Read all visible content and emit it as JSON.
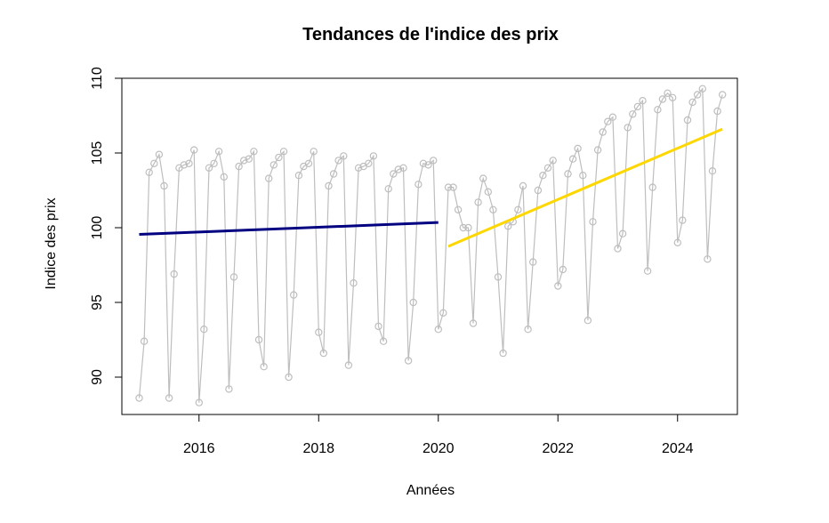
{
  "chart_data": {
    "type": "line",
    "title": "Tendances de l'indice des prix",
    "xlabel": "Années",
    "ylabel": "Indice des prix",
    "xlim": [
      2014.71,
      2025.0
    ],
    "ylim": [
      87.5,
      110.0
    ],
    "x_ticks": [
      2016,
      2018,
      2020,
      2022,
      2024
    ],
    "y_ticks": [
      90,
      95,
      100,
      105,
      110
    ],
    "grid": false,
    "legend": "none",
    "series": [
      {
        "kind": "line+points",
        "color": "#BEBEBE",
        "x": [
          2015.0,
          2015.083,
          2015.167,
          2015.25,
          2015.333,
          2015.417,
          2015.5,
          2015.583,
          2015.667,
          2015.75,
          2015.833,
          2015.917,
          2016.0,
          2016.083,
          2016.167,
          2016.25,
          2016.333,
          2016.417,
          2016.5,
          2016.583,
          2016.667,
          2016.75,
          2016.833,
          2016.917,
          2017.0,
          2017.083,
          2017.167,
          2017.25,
          2017.333,
          2017.417,
          2017.5,
          2017.583,
          2017.667,
          2017.75,
          2017.833,
          2017.917,
          2018.0,
          2018.083,
          2018.167,
          2018.25,
          2018.333,
          2018.417,
          2018.5,
          2018.583,
          2018.667,
          2018.75,
          2018.833,
          2018.917,
          2019.0,
          2019.083,
          2019.167,
          2019.25,
          2019.333,
          2019.417,
          2019.5,
          2019.583,
          2019.667,
          2019.75,
          2019.833,
          2019.917,
          2020.0,
          2020.083,
          2020.167,
          2020.25,
          2020.333,
          2020.417,
          2020.5,
          2020.583,
          2020.667,
          2020.75,
          2020.833,
          2020.917,
          2021.0,
          2021.083,
          2021.167,
          2021.25,
          2021.333,
          2021.417,
          2021.5,
          2021.583,
          2021.667,
          2021.75,
          2021.833,
          2021.917,
          2022.0,
          2022.083,
          2022.167,
          2022.25,
          2022.333,
          2022.417,
          2022.5,
          2022.583,
          2022.667,
          2022.75,
          2022.833,
          2022.917,
          2023.0,
          2023.083,
          2023.167,
          2023.25,
          2023.333,
          2023.417,
          2023.5,
          2023.583,
          2023.667,
          2023.75,
          2023.833,
          2023.917,
          2024.0,
          2024.083,
          2024.167,
          2024.25,
          2024.333,
          2024.417,
          2024.5,
          2024.583,
          2024.667,
          2024.75
        ],
        "y": [
          88.6,
          92.4,
          103.7,
          104.3,
          104.9,
          102.8,
          88.6,
          96.9,
          104.0,
          104.2,
          104.3,
          105.2,
          88.3,
          93.2,
          104.0,
          104.3,
          105.1,
          103.4,
          89.2,
          96.7,
          104.1,
          104.5,
          104.6,
          105.1,
          92.5,
          90.7,
          103.3,
          104.2,
          104.7,
          105.1,
          90.0,
          95.5,
          103.5,
          104.1,
          104.3,
          105.1,
          93.0,
          91.6,
          102.8,
          103.6,
          104.5,
          104.8,
          90.8,
          96.3,
          104.0,
          104.1,
          104.3,
          104.8,
          93.4,
          92.4,
          102.6,
          103.6,
          103.9,
          104.0,
          91.1,
          95.0,
          102.9,
          104.3,
          104.2,
          104.5,
          93.2,
          94.3,
          102.7,
          102.7,
          101.2,
          100.0,
          100.0,
          93.6,
          101.7,
          103.3,
          102.4,
          101.2,
          96.7,
          91.6,
          100.1,
          100.4,
          101.2,
          102.8,
          93.2,
          97.7,
          102.5,
          103.5,
          104.0,
          104.5,
          96.1,
          97.2,
          103.6,
          104.6,
          105.3,
          103.5,
          93.8,
          100.4,
          105.2,
          106.4,
          107.1,
          107.4,
          98.6,
          99.6,
          106.7,
          107.6,
          108.1,
          108.5,
          97.1,
          102.7,
          107.9,
          108.6,
          109.0,
          108.7,
          99.0,
          100.5,
          107.2,
          108.4,
          108.9,
          109.3,
          97.9,
          103.8,
          107.8,
          108.9
        ]
      },
      {
        "kind": "trend",
        "color": "#000080",
        "x": [
          2015.0,
          2020.0
        ],
        "y": [
          99.55,
          100.35
        ]
      },
      {
        "kind": "trend",
        "color": "#FFD700",
        "x": [
          2020.167,
          2024.75
        ],
        "y": [
          98.75,
          106.6
        ]
      }
    ]
  }
}
